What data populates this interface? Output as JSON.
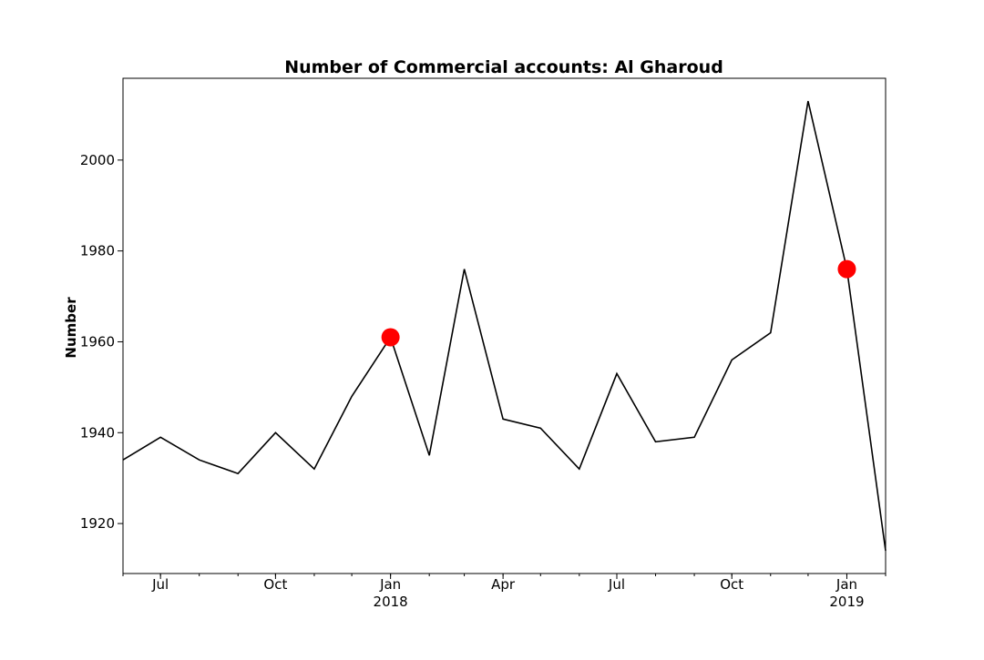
{
  "chart_data": {
    "type": "line",
    "title": "Number of Commercial accounts: Al Gharoud",
    "xlabel": "",
    "ylabel": "Number",
    "x": [
      "2017-06-01",
      "2017-07-01",
      "2017-08-01",
      "2017-09-01",
      "2017-10-01",
      "2017-11-01",
      "2017-12-01",
      "2018-01-01",
      "2018-02-01",
      "2018-03-01",
      "2018-04-01",
      "2018-05-01",
      "2018-06-01",
      "2018-07-01",
      "2018-08-01",
      "2018-09-01",
      "2018-10-01",
      "2018-11-01",
      "2018-12-01",
      "2019-01-01",
      "2019-02-01"
    ],
    "series": [
      {
        "values": [
          1934,
          1939,
          1934,
          1931,
          1940,
          1932,
          1948,
          1961,
          1935,
          1976,
          1943,
          1941,
          1932,
          1953,
          1938,
          1939,
          1956,
          1962,
          2013,
          1976,
          1914
        ],
        "color": "#000000"
      }
    ],
    "highlights": [
      {
        "x": "2018-01-01",
        "y": 1961,
        "color": "#ff0000"
      },
      {
        "x": "2019-01-01",
        "y": 1976,
        "color": "#ff0000"
      }
    ],
    "ylim": [
      1909,
      2018
    ],
    "yticks": [
      1920,
      1940,
      1960,
      1980,
      2000
    ],
    "xticks": [
      {
        "x": "2017-07-01",
        "label": "Jul",
        "sublabel": ""
      },
      {
        "x": "2017-10-01",
        "label": "Oct",
        "sublabel": ""
      },
      {
        "x": "2018-01-01",
        "label": "Jan",
        "sublabel": "2018"
      },
      {
        "x": "2018-04-01",
        "label": "Apr",
        "sublabel": ""
      },
      {
        "x": "2018-07-01",
        "label": "Jul",
        "sublabel": ""
      },
      {
        "x": "2018-10-01",
        "label": "Oct",
        "sublabel": ""
      },
      {
        "x": "2019-01-01",
        "label": "Jan",
        "sublabel": "2019"
      }
    ],
    "grid": false,
    "legend": "none"
  }
}
